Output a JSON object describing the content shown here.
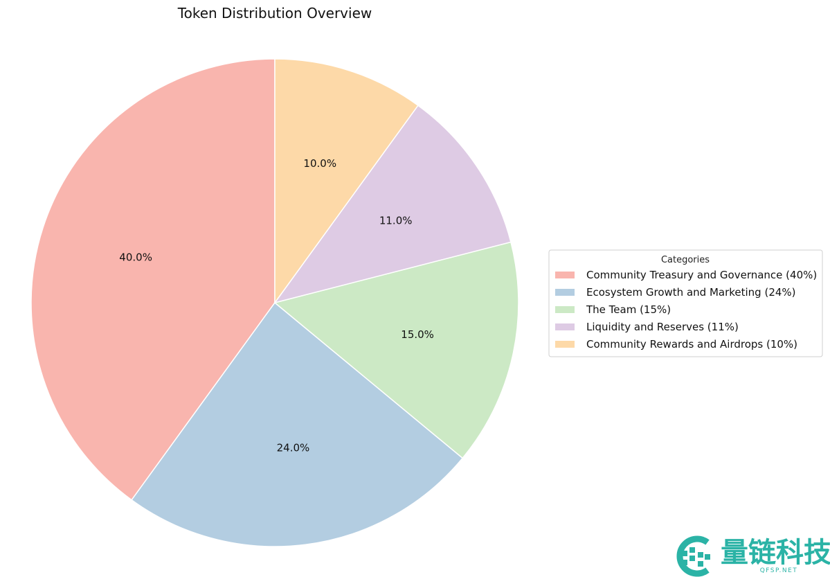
{
  "chart_data": {
    "type": "pie",
    "title": "Token Distribution Overview",
    "legend_title": "Categories",
    "legend_placement": "right",
    "start_angle_deg": 90,
    "direction": "counterclockwise",
    "slices": [
      {
        "label": "Community Treasury and Governance (40%)",
        "value": 40,
        "pct_label": "40.0%",
        "color": "#f9b5ae"
      },
      {
        "label": "Ecosystem Growth and Marketing (24%)",
        "value": 24,
        "pct_label": "24.0%",
        "color": "#b3cde1"
      },
      {
        "label": "The Team (15%)",
        "value": 15,
        "pct_label": "15.0%",
        "color": "#cce9c5"
      },
      {
        "label": "Liquidity and Reserves (11%)",
        "value": 11,
        "pct_label": "11.0%",
        "color": "#decbe4"
      },
      {
        "label": "Community Rewards and Airdrops (10%)",
        "value": 10,
        "pct_label": "10.0%",
        "color": "#fdd9a8"
      }
    ]
  },
  "watermark": {
    "text_cn": "量链科技",
    "text_en": "QFSP.NET",
    "color": "#2bb3a6"
  }
}
